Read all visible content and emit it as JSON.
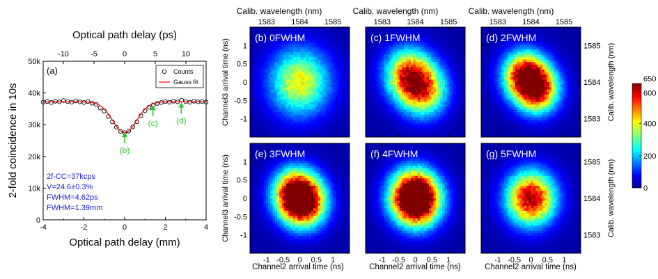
{
  "chart_data": [
    {
      "type": "scatter",
      "panel_label": "(a)",
      "top_axis_title": "Optical path delay (ps)",
      "top_ticks": [
        "-10",
        "-5",
        "0",
        "5",
        "10"
      ],
      "top_tick_values": [
        -10,
        -5,
        0,
        5,
        10
      ],
      "xlabel": "Optical path delay (mm)",
      "ylabel": "2-fold coincidence in 10s",
      "xlim": [
        -4,
        4
      ],
      "ylim": [
        0,
        50000
      ],
      "x_ticks": [
        "-4",
        "-2",
        "0",
        "2",
        "4"
      ],
      "x_tick_values": [
        -4,
        -2,
        0,
        2,
        4
      ],
      "y_ticks": [
        "0",
        "10k",
        "20k",
        "30k",
        "40k",
        "50k"
      ],
      "y_tick_values": [
        0,
        10000,
        20000,
        30000,
        40000,
        50000
      ],
      "legend": {
        "position": "top-right",
        "items": [
          "Counts",
          "Gauss fit"
        ]
      },
      "series": [
        {
          "name": "Counts",
          "marker": "open-circle",
          "x": [
            -4.0,
            -3.8,
            -3.6,
            -3.4,
            -3.2,
            -3.0,
            -2.8,
            -2.6,
            -2.4,
            -2.2,
            -2.0,
            -1.8,
            -1.6,
            -1.4,
            -1.2,
            -1.0,
            -0.8,
            -0.6,
            -0.4,
            -0.2,
            0.0,
            0.2,
            0.4,
            0.6,
            0.8,
            1.0,
            1.2,
            1.4,
            1.6,
            1.8,
            2.0,
            2.2,
            2.4,
            2.6,
            2.8,
            3.0,
            3.2,
            3.4,
            3.6,
            3.8,
            4.0
          ],
          "y": [
            37100,
            37300,
            37000,
            37400,
            37200,
            37600,
            37300,
            37100,
            37500,
            37200,
            37000,
            37300,
            36800,
            36400,
            35300,
            34300,
            32600,
            30900,
            29200,
            27900,
            27500,
            28000,
            29300,
            30900,
            32800,
            34400,
            35500,
            36200,
            36700,
            37000,
            37300,
            37100,
            37400,
            37200,
            37700,
            37300,
            37100,
            37400,
            37200,
            37300,
            37100
          ]
        },
        {
          "name": "Gauss fit",
          "model": "gaussian",
          "baseline": 37200,
          "depth": 9700,
          "center_mm": 0.0,
          "fwhm_mm": 1.39,
          "color": "#ff0000"
        }
      ],
      "annotations": [
        {
          "text": "(b)",
          "x": 0.0,
          "arrow_to_y": 28300
        },
        {
          "text": "(c)",
          "x": 1.39,
          "arrow_to_y": 36800
        },
        {
          "text": "(d)",
          "x": 2.78,
          "arrow_to_y": 37600
        }
      ],
      "info_text": [
        "2f-CC=37kcps",
        "V=24.6±0.3%",
        "FWHM=4.62ps",
        "FWHM=1.39mm"
      ],
      "annotation_color": "#22cc22",
      "info_color": "#1a1ad8"
    },
    {
      "type": "heatmap",
      "top_axis_title": "Calib. wavelength (nm)",
      "top_ticks": [
        "1583",
        "1584",
        "1585"
      ],
      "top_tick_values": [
        -1,
        0,
        1
      ],
      "xlabel": "Channel2 arrival  time (ns)",
      "ylabel": "Channel3 arrival  time (ns)",
      "right_axis_title": "Calib. wavelength (nm)",
      "right_ticks": [
        "1583",
        "1584",
        "1585"
      ],
      "right_tick_values": [
        -1,
        0,
        1
      ],
      "x_ticks": [
        "-1",
        "-0.5",
        "0",
        "0.5",
        "1"
      ],
      "x_tick_values": [
        -1,
        -0.5,
        0,
        0.5,
        1
      ],
      "y_ticks": [
        "1",
        "0.5",
        "0",
        "-0.5",
        "-1"
      ],
      "y_tick_values": [
        1,
        0.5,
        0,
        -0.5,
        -1
      ],
      "xlim": [
        -1.5,
        1.5
      ],
      "ylim": [
        -1.5,
        1.5
      ],
      "panels": [
        {
          "label": "(b) 0FWHM",
          "peak": 380,
          "lobe_sep_ns": 0.0,
          "spread_ns": 0.62
        },
        {
          "label": "(c) 1FWHM",
          "peak": 520,
          "lobe_sep_ns": 0.33,
          "spread_ns": 0.48
        },
        {
          "label": "(d) 2FWHM",
          "peak": 640,
          "lobe_sep_ns": 0.28,
          "spread_ns": 0.44
        },
        {
          "label": "(e) 3FWHM",
          "peak": 620,
          "lobe_sep_ns": 0.2,
          "spread_ns": 0.46
        },
        {
          "label": "(f) 4FWHM",
          "peak": 600,
          "lobe_sep_ns": 0.12,
          "spread_ns": 0.48
        },
        {
          "label": "(g) 5FWHM",
          "peak": 610,
          "lobe_sep_ns": 0.0,
          "spread_ns": 0.5
        }
      ],
      "colorbar": {
        "min": 0,
        "max": 650,
        "ticks": [
          "0",
          "200",
          "400",
          "600",
          "650"
        ],
        "tick_values": [
          0,
          200,
          400,
          600,
          650
        ]
      }
    }
  ]
}
